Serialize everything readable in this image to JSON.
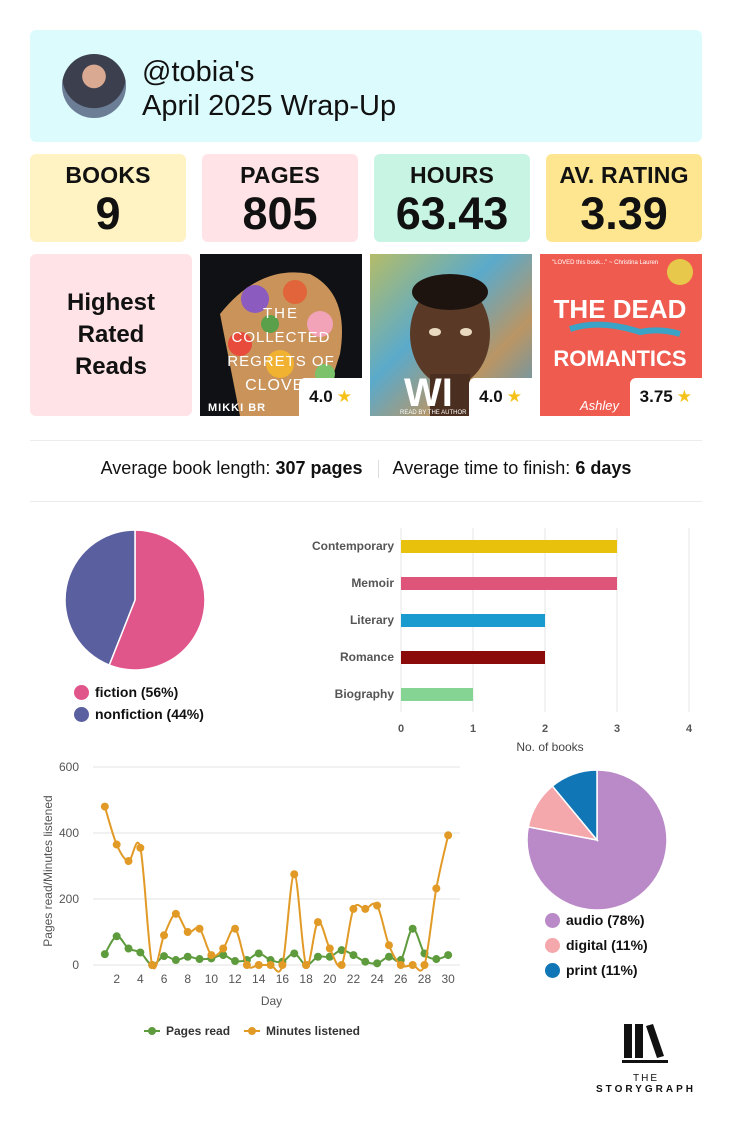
{
  "header": {
    "handle": "@tobia's",
    "title": "April 2025 Wrap-Up",
    "bg_color": "#dcfbfd"
  },
  "stats": [
    {
      "label": "BOOKS",
      "value": "9",
      "color": "#fff2c3"
    },
    {
      "label": "PAGES",
      "value": "805",
      "color": "#ffe3e6"
    },
    {
      "label": "HOURS",
      "value": "63.43",
      "color": "#c8f4e4"
    },
    {
      "label": "AV. RATING",
      "value": "3.39",
      "color": "#fde68f"
    }
  ],
  "highest_rated": {
    "label": "Highest Rated Reads",
    "books": [
      {
        "cover_text": "THE COLLECTED REGRETS OF CLOVER",
        "author": "MIKKI BR",
        "rating": "4.0"
      },
      {
        "cover_text": "WI",
        "author": "READ BY THE AUTHOR",
        "rating": "4.0"
      },
      {
        "cover_text": "THE DEAD ROMANTICS",
        "author": "Ashley",
        "rating": "3.75"
      }
    ]
  },
  "averages": {
    "length_label": "Average book length:",
    "length_value": "307 pages",
    "time_label": "Average time to finish:",
    "time_value": "6 days"
  },
  "chart_data": [
    {
      "type": "pie",
      "name": "fiction-nonfiction",
      "slices": [
        {
          "label": "fiction (56%)",
          "value": 56,
          "color": "#e0558a"
        },
        {
          "label": "nonfiction (44%)",
          "value": 44,
          "color": "#5a5f9f"
        }
      ]
    },
    {
      "type": "bar",
      "orientation": "horizontal",
      "name": "genres",
      "categories": [
        "Contemporary",
        "Memoir",
        "Literary",
        "Romance",
        "Biography"
      ],
      "values": [
        3,
        3,
        2,
        2,
        1
      ],
      "colors": [
        "#e7c10c",
        "#df5479",
        "#1a9bd0",
        "#8b0a0a",
        "#86d493"
      ],
      "xlabel": "No. of books",
      "xlim": [
        0,
        4
      ],
      "xticks": [
        "0",
        "1",
        "2",
        "3",
        "4"
      ]
    },
    {
      "type": "line",
      "name": "daily-reading",
      "xlabel": "Day",
      "ylabel": "Pages read/Minutes listened",
      "ylim": [
        0,
        600
      ],
      "yticks": [
        "0",
        "200",
        "400",
        "600"
      ],
      "xticks": [
        "2",
        "4",
        "6",
        "8",
        "10",
        "12",
        "14",
        "16",
        "18",
        "20",
        "22",
        "24",
        "26",
        "28",
        "30"
      ],
      "x": [
        1,
        2,
        3,
        4,
        5,
        6,
        7,
        8,
        9,
        10,
        11,
        12,
        13,
        14,
        15,
        16,
        17,
        18,
        19,
        20,
        21,
        22,
        23,
        24,
        25,
        26,
        27,
        28,
        29,
        30
      ],
      "series": [
        {
          "name": "Pages read",
          "color": "#5e9b3d",
          "values": [
            33,
            87,
            50,
            38,
            0,
            27,
            15,
            25,
            18,
            20,
            30,
            12,
            15,
            35,
            15,
            10,
            35,
            0,
            25,
            25,
            45,
            30,
            10,
            5,
            25,
            15,
            110,
            35,
            18,
            30
          ]
        },
        {
          "name": "Minutes listened",
          "color": "#e29a27",
          "values": [
            480,
            365,
            315,
            355,
            0,
            90,
            155,
            100,
            110,
            30,
            50,
            110,
            0,
            0,
            0,
            0,
            275,
            0,
            130,
            50,
            0,
            170,
            170,
            180,
            60,
            0,
            0,
            0,
            232,
            393
          ]
        }
      ]
    },
    {
      "type": "pie",
      "name": "format",
      "slices": [
        {
          "label": "audio (78%)",
          "value": 78,
          "color": "#b98ac7"
        },
        {
          "label": "digital (11%)",
          "value": 11,
          "color": "#f5a8ac"
        },
        {
          "label": "print (11%)",
          "value": 11,
          "color": "#1176b5"
        }
      ]
    }
  ],
  "logo": {
    "line1": "THE",
    "line2": "STORYGRAPH"
  }
}
